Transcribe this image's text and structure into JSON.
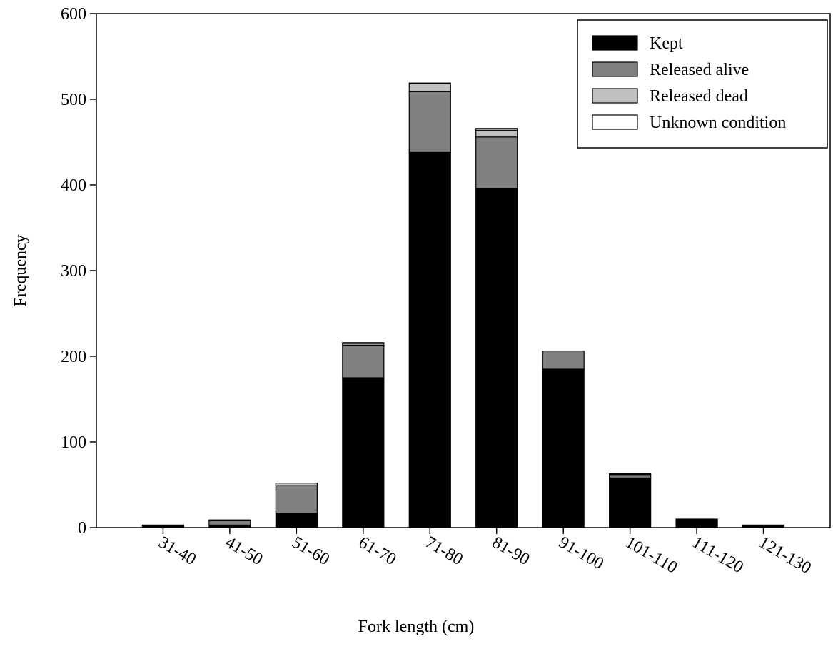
{
  "chart_data": {
    "type": "stacked-bar",
    "x_label": "Fork length (cm)",
    "y_label": "Frequency",
    "categories": [
      "31-40",
      "41-50",
      "51-60",
      "61-70",
      "71-80",
      "81-90",
      "91-100",
      "101-110",
      "111-120",
      "121-130"
    ],
    "series": [
      {
        "name": "Kept",
        "color": "#000000",
        "values": [
          2,
          3,
          17,
          175,
          438,
          396,
          185,
          58,
          9,
          3
        ]
      },
      {
        "name": "Released alive",
        "color": "#808080",
        "values": [
          1,
          5,
          32,
          38,
          71,
          60,
          19,
          4,
          1,
          0
        ]
      },
      {
        "name": "Released dead",
        "color": "#c0c0c0",
        "values": [
          0,
          1,
          3,
          2,
          9,
          8,
          2,
          1,
          0,
          0
        ]
      },
      {
        "name": "Unknown condition",
        "color": "#ffffff",
        "values": [
          0,
          0,
          0,
          1,
          1,
          2,
          0,
          0,
          0,
          0
        ]
      }
    ],
    "ylim": [
      0,
      600
    ],
    "yticks": [
      0,
      100,
      200,
      300,
      400,
      500,
      600
    ],
    "legend": "top-right"
  }
}
